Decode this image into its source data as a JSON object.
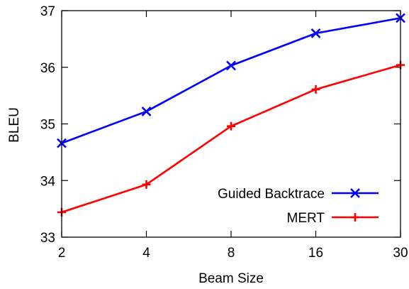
{
  "chart_data": {
    "type": "line",
    "xlabel": "Beam Size",
    "ylabel": "BLEU",
    "categories": [
      "2",
      "4",
      "8",
      "16",
      "30"
    ],
    "ylim": [
      33,
      37
    ],
    "yticks": [
      "33",
      "34",
      "35",
      "36",
      "37"
    ],
    "grid": false,
    "legend_position": "bottom-right",
    "series": [
      {
        "name": "Guided Backtrace",
        "color": "#0000ff",
        "marker": "x",
        "values": [
          34.66,
          35.22,
          36.03,
          36.6,
          36.87
        ]
      },
      {
        "name": "MERT",
        "color": "#ff0000",
        "marker": "plus",
        "values": [
          33.44,
          33.93,
          34.96,
          35.61,
          36.04
        ]
      }
    ]
  }
}
